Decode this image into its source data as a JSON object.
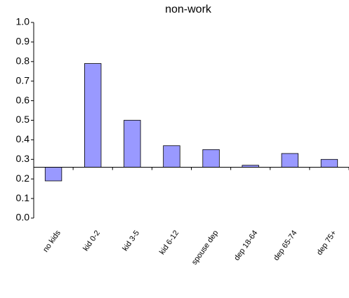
{
  "chart_data": {
    "type": "bar",
    "title": "non-work",
    "categories": [
      "no kids",
      "kid 0-2",
      "kid 3-5",
      "kid 6-12",
      "spouse dep",
      "dep 18-64",
      "dep 65-74",
      "dep 75+"
    ],
    "values": [
      0.19,
      0.79,
      0.5,
      0.37,
      0.35,
      0.27,
      0.33,
      0.3
    ],
    "color": "#9999ff",
    "ylim": [
      0,
      1
    ],
    "yticks": [
      {
        "value": 0,
        "label": "0.0"
      },
      0.1,
      0.2,
      0.3,
      0.4,
      0.5,
      0.6,
      0.7,
      0.8,
      0.9,
      {
        "value": 1,
        "label": "1.0"
      }
    ],
    "x_axis_crosses": 0.26,
    "grid": false
  }
}
